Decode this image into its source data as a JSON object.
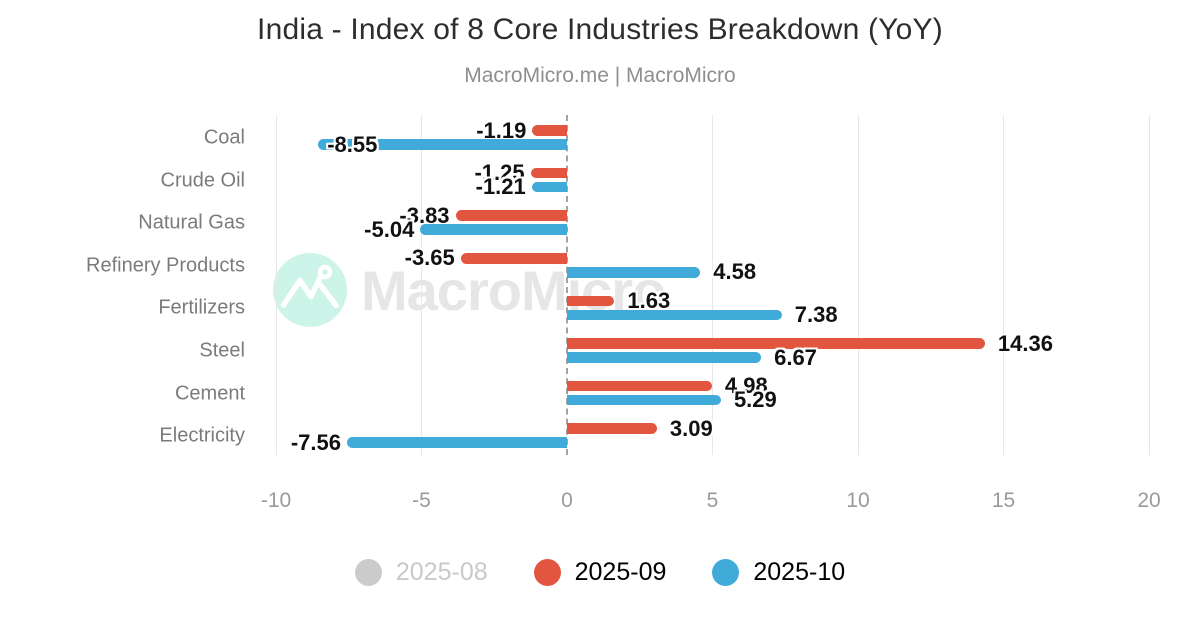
{
  "header": {
    "title": "India - Index of 8 Core Industries Breakdown (YoY)",
    "subtitle": "MacroMicro.me | MacroMicro"
  },
  "watermark": {
    "text": "MacroMicro",
    "icon": "macromicro-logo"
  },
  "chart_data": {
    "type": "bar",
    "orientation": "horizontal",
    "title": "India - Index of 8 Core Industries Breakdown (YoY)",
    "subtitle": "MacroMicro.me | MacroMicro",
    "categories": [
      "Coal",
      "Crude Oil",
      "Natural Gas",
      "Refinery Products",
      "Fertilizers",
      "Steel",
      "Cement",
      "Electricity"
    ],
    "series": [
      {
        "name": "2025-08",
        "color": "#cbcbcb",
        "visible": false,
        "values": []
      },
      {
        "name": "2025-09",
        "color": "#e2563f",
        "visible": true,
        "values": [
          -1.19,
          -1.25,
          -3.83,
          -3.65,
          1.63,
          14.36,
          4.98,
          3.09
        ]
      },
      {
        "name": "2025-10",
        "color": "#40aad8",
        "visible": true,
        "values": [
          -8.55,
          -1.21,
          -5.04,
          4.58,
          7.38,
          6.67,
          5.29,
          -7.56
        ]
      }
    ],
    "xticks": [
      -10,
      -5,
      0,
      5,
      10,
      15,
      20
    ],
    "xlim": [
      -10.7,
      20.4
    ],
    "xlabel": "",
    "ylabel": "",
    "grid": true,
    "zero_line": "dashed",
    "value_format": "0.00",
    "legend_position": "bottom"
  },
  "colors": {
    "background": "#ffffff",
    "title": "#2d2d2d",
    "subtitle": "#8f8f8f",
    "category_label": "#7b7b7b",
    "tick_label": "#9a9a9a",
    "gridline": "#e7e7e7",
    "zero_line": "#a3a3a3",
    "data_label": "#111111",
    "watermark_text": "#e6e6e6",
    "watermark_circle": "#cdf4e8",
    "legend_hidden": "#c9c9c9",
    "series_red": "#e2563f",
    "series_blue": "#40aad8",
    "series_gray": "#cbcbcb"
  }
}
